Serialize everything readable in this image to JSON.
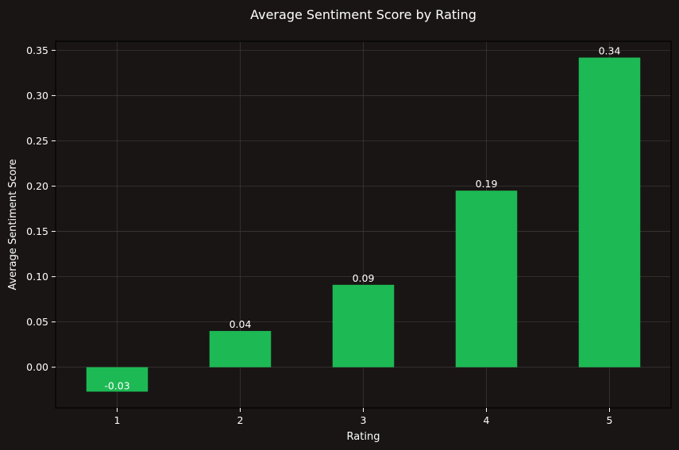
{
  "chart_data": {
    "type": "bar",
    "title": "Average Sentiment Score by Rating",
    "xlabel": "Rating",
    "ylabel": "Average Sentiment Score",
    "categories": [
      "1",
      "2",
      "3",
      "4",
      "5"
    ],
    "values": [
      -0.027,
      0.04,
      0.091,
      0.195,
      0.342
    ],
    "data_labels": [
      "-0.03",
      "0.04",
      "0.09",
      "0.19",
      "0.34"
    ],
    "ylim": [
      -0.045,
      0.36
    ],
    "yticks": [
      0.0,
      0.05,
      0.1,
      0.15,
      0.2,
      0.25,
      0.3,
      0.35
    ],
    "ytick_labels": [
      "0.00",
      "0.05",
      "0.10",
      "0.15",
      "0.20",
      "0.25",
      "0.30",
      "0.35"
    ],
    "grid": true,
    "legend": "none"
  },
  "colors": {
    "background": "#191514",
    "bar": "#1db954",
    "axis": "#000000",
    "grid": "#3a3634",
    "text": "#ffffff"
  }
}
